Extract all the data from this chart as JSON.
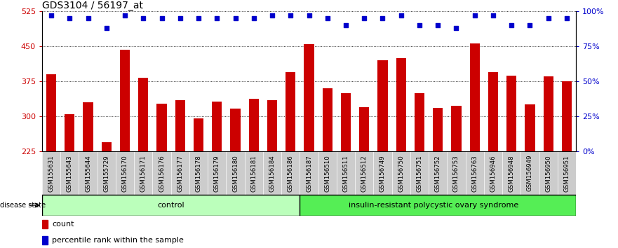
{
  "title": "GDS3104 / 56197_at",
  "samples": [
    "GSM155631",
    "GSM155643",
    "GSM155644",
    "GSM155729",
    "GSM156170",
    "GSM156171",
    "GSM156176",
    "GSM156177",
    "GSM156178",
    "GSM156179",
    "GSM156180",
    "GSM156181",
    "GSM156184",
    "GSM156186",
    "GSM156187",
    "GSM156510",
    "GSM156511",
    "GSM156512",
    "GSM156749",
    "GSM156750",
    "GSM156751",
    "GSM156752",
    "GSM156753",
    "GSM156763",
    "GSM156946",
    "GSM156948",
    "GSM156949",
    "GSM156950",
    "GSM156951"
  ],
  "bar_values": [
    390,
    305,
    330,
    245,
    443,
    383,
    327,
    335,
    296,
    332,
    317,
    337,
    335,
    395,
    455,
    360,
    350,
    320,
    420,
    424,
    350,
    318,
    322,
    456,
    395,
    387,
    325,
    385,
    375
  ],
  "percentile_values": [
    97,
    95,
    95,
    88,
    97,
    95,
    95,
    95,
    95,
    95,
    95,
    95,
    97,
    97,
    97,
    95,
    90,
    95,
    95,
    97,
    90,
    90,
    88,
    97,
    97,
    90,
    90,
    95,
    95
  ],
  "control_count": 14,
  "disease_count": 15,
  "ylim_left": [
    225,
    525
  ],
  "ylim_right": [
    0,
    100
  ],
  "yticks_left": [
    225,
    300,
    375,
    450,
    525
  ],
  "yticks_right": [
    0,
    25,
    50,
    75,
    100
  ],
  "bar_color": "#cc0000",
  "dot_color": "#0000cc",
  "control_color": "#bbffbb",
  "disease_color": "#55ee55",
  "tick_bg_color": "#cccccc",
  "title_fontsize": 10,
  "axis_color_left": "#cc0000",
  "axis_color_right": "#0000cc"
}
